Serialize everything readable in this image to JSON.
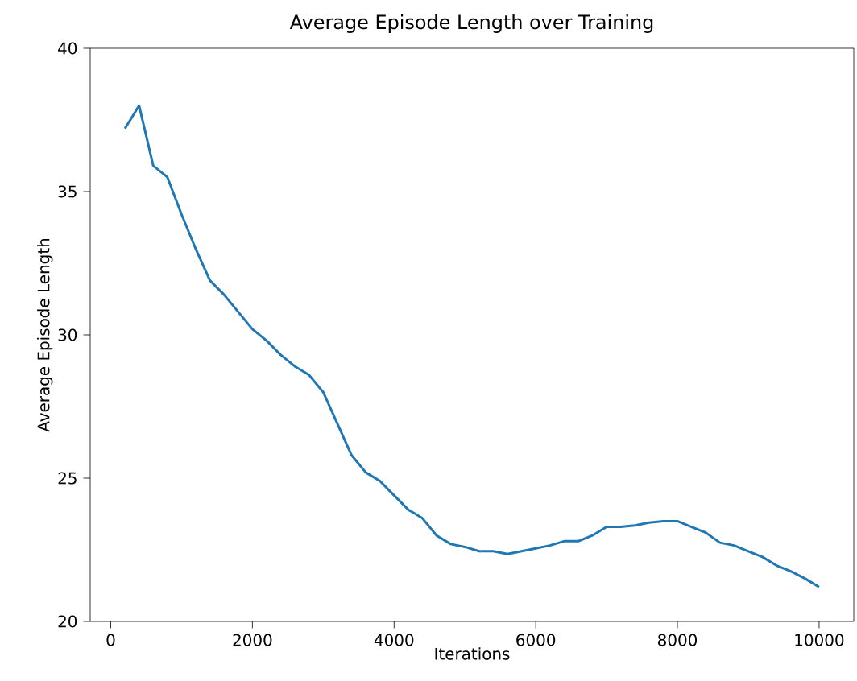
{
  "chart_data": {
    "type": "line",
    "title": "Average Episode Length over Training",
    "xlabel": "Iterations",
    "ylabel": "Average Episode Length",
    "x": [
      200,
      400,
      600,
      800,
      1000,
      1200,
      1400,
      1600,
      1800,
      2000,
      2200,
      2400,
      2600,
      2800,
      3000,
      3200,
      3400,
      3600,
      3800,
      4000,
      4200,
      4400,
      4600,
      4800,
      5000,
      5200,
      5400,
      5600,
      5800,
      6000,
      6200,
      6400,
      6600,
      6800,
      7000,
      7200,
      7400,
      7600,
      7800,
      8000,
      8200,
      8400,
      8600,
      8800,
      9000,
      9200,
      9400,
      9600,
      9800,
      10000
    ],
    "series": [
      {
        "color": "#1f77b4",
        "values": [
          37.2,
          38.0,
          35.9,
          35.5,
          34.2,
          33.0,
          31.9,
          31.4,
          30.8,
          30.2,
          29.8,
          29.3,
          28.9,
          28.6,
          28.0,
          26.9,
          25.8,
          25.2,
          24.9,
          24.4,
          23.9,
          23.6,
          23.0,
          22.7,
          22.6,
          22.45,
          22.45,
          22.35,
          22.45,
          22.55,
          22.65,
          22.8,
          22.8,
          23.0,
          23.3,
          23.3,
          23.35,
          23.45,
          23.5,
          23.5,
          23.3,
          23.1,
          22.75,
          22.65,
          22.45,
          22.25,
          21.95,
          21.75,
          21.5,
          21.2
        ]
      }
    ],
    "xlim": [
      -290,
      10490
    ],
    "ylim": [
      20,
      40
    ],
    "xticks": [
      0,
      2000,
      4000,
      6000,
      8000,
      10000
    ],
    "yticks": [
      20,
      25,
      30,
      35,
      40
    ],
    "marker": "none",
    "line_style": "solid"
  }
}
